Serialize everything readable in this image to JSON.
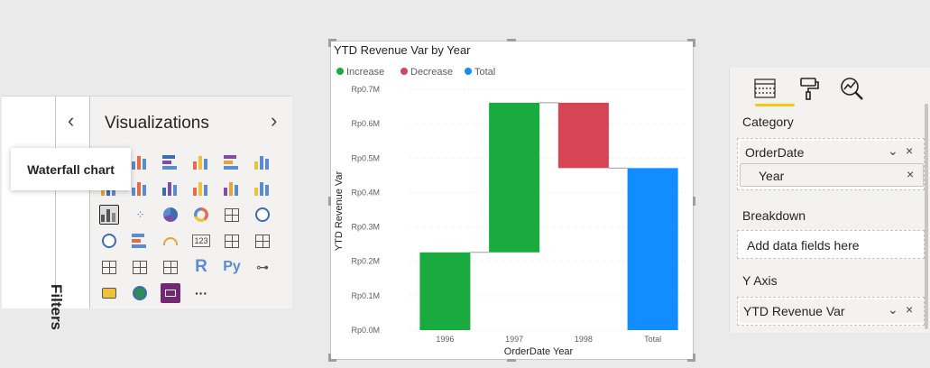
{
  "left_pane": {
    "filters_label": "Filters",
    "viz_title": "Visualizations",
    "collapse_glyph": "‹",
    "expand_glyph": "›",
    "more_glyph": "···",
    "tooltip": "Waterfall chart",
    "viz_icons": [
      "stacked-bar-icon",
      "stacked-column-icon",
      "clustered-bar-icon",
      "clustered-column-icon",
      "stacked-bar-100-icon",
      "stacked-column-100-icon",
      "line-chart-icon",
      "area-chart-icon",
      "stacked-area-icon",
      "line-column-icon",
      "line-clustered-column-icon",
      "ribbon-chart-icon",
      "waterfall-chart-icon",
      "scatter-chart-icon",
      "pie-chart-icon",
      "donut-chart-icon",
      "treemap-icon",
      "map-icon",
      "filled-map-icon",
      "funnel-icon",
      "gauge-icon",
      "card-icon",
      "multi-row-card-icon",
      "kpi-icon",
      "slicer-icon",
      "table-icon",
      "matrix-icon",
      "r-visual-icon",
      "python-visual-icon",
      "key-influencers-icon",
      "qa-icon",
      "arcgis-map-icon",
      "power-apps-icon",
      "more-visuals-icon"
    ],
    "viz_text": {
      "card": "123",
      "r": "R",
      "py": "Py"
    }
  },
  "chart": {
    "title": "YTD Revenue Var by Year",
    "legend": [
      {
        "label": "Increase",
        "color": "#1aab40"
      },
      {
        "label": "Decrease",
        "color": "#d64554"
      },
      {
        "label": "Total",
        "color": "#118dff"
      }
    ],
    "xlabel": "OrderDate Year",
    "ylabel": "YTD Revenue Var"
  },
  "chart_data": {
    "type": "bar",
    "subtype": "waterfall",
    "title": "YTD Revenue Var by Year",
    "xlabel": "OrderDate Year",
    "ylabel": "YTD Revenue Var",
    "categories": [
      "1996",
      "1997",
      "1998",
      "Total"
    ],
    "bars": [
      {
        "category": "1996",
        "kind": "Increase",
        "start": 0.0,
        "end": 0.226
      },
      {
        "category": "1997",
        "kind": "Increase",
        "start": 0.226,
        "end": 0.661
      },
      {
        "category": "1998",
        "kind": "Decrease",
        "start": 0.661,
        "end": 0.471
      },
      {
        "category": "Total",
        "kind": "Total",
        "start": 0.0,
        "end": 0.471
      }
    ],
    "yticks": [
      "Rp0.0M",
      "Rp0.1M",
      "Rp0.2M",
      "Rp0.3M",
      "Rp0.4M",
      "Rp0.5M",
      "Rp0.6M",
      "Rp0.7M"
    ],
    "ylim": [
      0,
      0.7
    ],
    "grid": true,
    "legend_position": "top-left"
  },
  "right_pane": {
    "tabs": [
      "fields-tab-icon",
      "format-paint-icon",
      "analytics-icon"
    ],
    "category_label": "Category",
    "category_fields": [
      "OrderDate",
      "Year"
    ],
    "breakdown_label": "Breakdown",
    "breakdown_placeholder": "Add data fields here",
    "yaxis_label": "Y Axis",
    "yaxis_field": "YTD Revenue Var",
    "chevron": "⌄",
    "remove": "×"
  }
}
